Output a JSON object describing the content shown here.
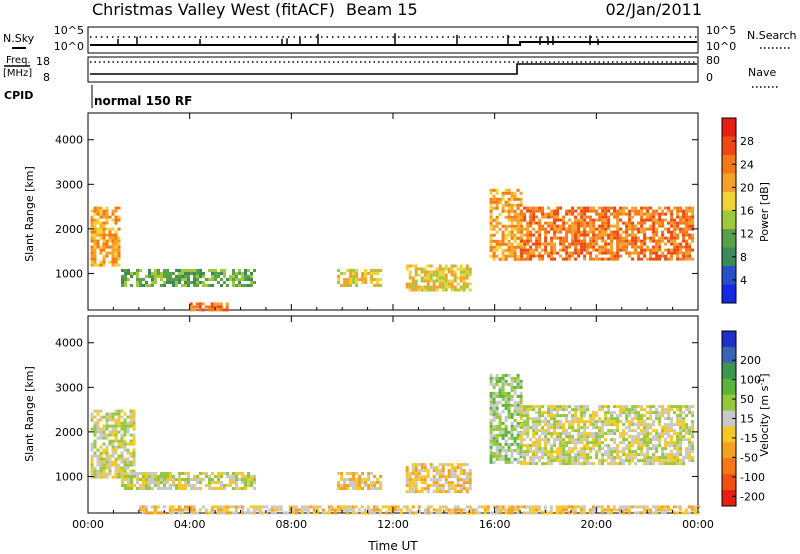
{
  "header": {
    "station": "Christmas Valley West (fitACF)",
    "beam": "Beam 15",
    "date": "02/Jan/2011"
  },
  "top_panels": {
    "nsky_label": "N.Sky",
    "nsearch_label": "N.Search",
    "noise_ticks_left": [
      "10^5",
      "10^0"
    ],
    "noise_ticks_right": [
      "10^5",
      "10^0"
    ],
    "freq_label": "Freq.",
    "freq_unit": "[MHz]",
    "freq_ticks": [
      "18",
      "8"
    ],
    "nave_label": "Nave",
    "nave_ticks": [
      "80",
      "0"
    ],
    "cpid_label": "CPID",
    "cpid_value": "normal 150 RF"
  },
  "colorbars": {
    "power": {
      "label": "Power [dB]",
      "ticks": [
        "4",
        "8",
        "12",
        "16",
        "20",
        "24",
        "28"
      ],
      "colors": [
        "#1428e6",
        "#2a50c8",
        "#3c8a5a",
        "#5aa046",
        "#a0c83c",
        "#f0d232",
        "#f5a028",
        "#f57814",
        "#f04614",
        "#e61e14"
      ]
    },
    "velocity": {
      "label_main": "Velocity [m s",
      "label_sup": "-1",
      "label_end": "]",
      "ticks": [
        "200",
        "100",
        "50",
        "15",
        "-15",
        "-50",
        "-100",
        "-200"
      ],
      "colors": [
        "#1e32c8",
        "#3c64b4",
        "#3c9650",
        "#5ab43c",
        "#96c83c",
        "#c8c8c8",
        "#f5c828",
        "#f5a01e",
        "#f57814",
        "#f05014",
        "#e61e14"
      ]
    }
  },
  "chart_data": [
    {
      "type": "heatmap",
      "title": "Power",
      "xlabel": "Time UT",
      "ylabel": "Slant Range [km]",
      "xlim": [
        0,
        24
      ],
      "ylim": [
        180,
        4600
      ],
      "x_ticks": [
        "00:00",
        "04:00",
        "08:00",
        "12:00",
        "16:00",
        "20:00",
        "00:00"
      ],
      "y_ticks": [
        "1000",
        "2000",
        "3000",
        "4000"
      ],
      "colorbar": "Power [dB]",
      "regions": [
        {
          "t": [
            0.1,
            1.2
          ],
          "r": [
            1200,
            2500
          ],
          "value_db": 20
        },
        {
          "t": [
            1.3,
            6.5
          ],
          "r": [
            700,
            1100
          ],
          "value_db": 10
        },
        {
          "t": [
            9.8,
            11.5
          ],
          "r": [
            700,
            1100
          ],
          "value_db": 18
        },
        {
          "t": [
            12.5,
            15.0
          ],
          "r": [
            650,
            1200
          ],
          "value_db": 16
        },
        {
          "t": [
            15.8,
            17.0
          ],
          "r": [
            1300,
            2900
          ],
          "value_db": 20
        },
        {
          "t": [
            17.0,
            23.8
          ],
          "r": [
            1300,
            2500
          ],
          "value_db": 24
        },
        {
          "t": [
            4.0,
            5.5
          ],
          "r": [
            200,
            350
          ],
          "value_db": 26
        }
      ]
    },
    {
      "type": "heatmap",
      "title": "Velocity",
      "xlabel": "Time UT",
      "ylabel": "Slant Range [km]",
      "xlim": [
        0,
        24
      ],
      "ylim": [
        180,
        4600
      ],
      "x_ticks": [
        "00:00",
        "04:00",
        "08:00",
        "12:00",
        "16:00",
        "20:00",
        "00:00"
      ],
      "y_ticks": [
        "1000",
        "2000",
        "3000",
        "4000"
      ],
      "colorbar": "Velocity [m s-1]",
      "regions": [
        {
          "t": [
            0.1,
            1.8
          ],
          "r": [
            1000,
            2500
          ],
          "value_ms": 0
        },
        {
          "t": [
            1.3,
            6.5
          ],
          "r": [
            700,
            1100
          ],
          "value_ms": 0
        },
        {
          "t": [
            9.8,
            11.5
          ],
          "r": [
            700,
            1100
          ],
          "value_ms": -40
        },
        {
          "t": [
            12.5,
            15.0
          ],
          "r": [
            650,
            1300
          ],
          "value_ms": -40
        },
        {
          "t": [
            15.8,
            17.0
          ],
          "r": [
            1300,
            3300
          ],
          "value_ms": 40
        },
        {
          "t": [
            17.0,
            23.8
          ],
          "r": [
            1300,
            2600
          ],
          "value_ms": 0
        },
        {
          "t": [
            2.0,
            24.0
          ],
          "r": [
            200,
            350
          ],
          "value_ms": -40
        }
      ]
    }
  ]
}
